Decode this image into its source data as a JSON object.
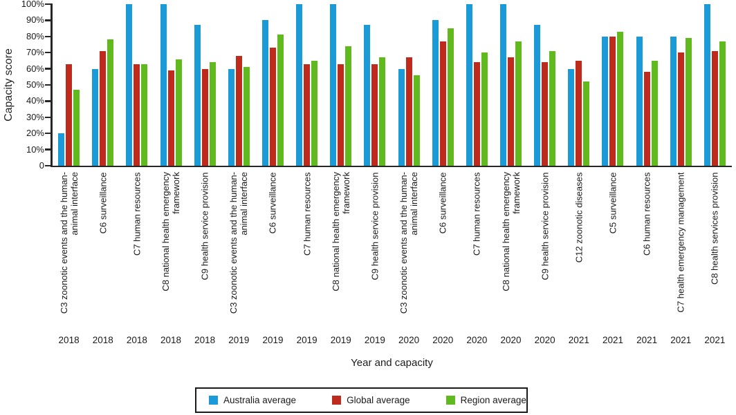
{
  "chart_data": {
    "type": "bar",
    "title": "",
    "ylabel": "Capacity score",
    "xlabel": "Year and capacity",
    "ylim": [
      0,
      100
    ],
    "grid": false,
    "legend_position": "bottom",
    "yticks": [
      "100%",
      "90%",
      "80%",
      "70%",
      "60%",
      "50%",
      "40%",
      "30%",
      "20%",
      "10%",
      "0"
    ],
    "years": [
      "2018",
      "2018",
      "2018",
      "2018",
      "2018",
      "2019",
      "2019",
      "2019",
      "2019",
      "2019",
      "2020",
      "2020",
      "2020",
      "2020",
      "2020",
      "2021",
      "2021",
      "2021",
      "2021",
      "2021"
    ],
    "categories": [
      "C3 zoonotic events and the human-animal interface",
      "C6 surveillance",
      "C7 human resources",
      "C8 national health emergency framework",
      "C9 health service provision",
      "C3 zoonotic events and the human-animal interface",
      "C6 surveillance",
      "C7 human resources",
      "C8 national health emergency framework",
      "C9 health service provision",
      "C3 zoonotic events and the human-animal interface",
      "C6 surveillance",
      "C7 human resources",
      "C8 national health emergency framework",
      "C9 health service provision",
      "C12 zoonotic diseases",
      "C5 surveillance",
      "C6 human resources",
      "C7 health emergency management",
      "C8 health services provision"
    ],
    "series": [
      {
        "name": "Australia average",
        "color": "#1A9AD7",
        "values": [
          20,
          60,
          100,
          100,
          87,
          60,
          90,
          100,
          100,
          87,
          60,
          90,
          100,
          100,
          87,
          60,
          80,
          80,
          80,
          100
        ]
      },
      {
        "name": "Global average",
        "color": "#BE2A1B",
        "values": [
          63,
          71,
          63,
          59,
          60,
          68,
          73,
          63,
          63,
          63,
          67,
          77,
          64,
          67,
          64,
          65,
          80,
          58,
          70,
          71
        ]
      },
      {
        "name": "Region average",
        "color": "#60BA1E",
        "values": [
          47,
          78,
          63,
          66,
          64,
          61,
          81,
          65,
          74,
          67,
          56,
          85,
          70,
          77,
          71,
          52,
          83,
          65,
          79,
          77
        ]
      }
    ]
  }
}
